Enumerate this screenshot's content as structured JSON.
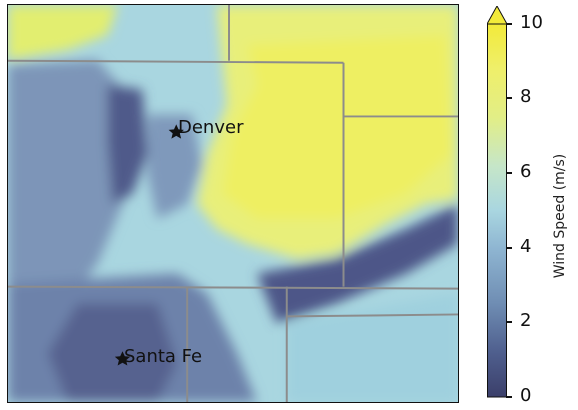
{
  "cities": [
    {
      "name": "Denver"
    },
    {
      "name": "Santa Fe"
    }
  ],
  "colorbar": {
    "title": "Wind Speed (m/s)",
    "min": 0,
    "max": 10,
    "extend": "max",
    "ticks": [
      "0",
      "2",
      "4",
      "6",
      "8",
      "10"
    ],
    "colors": [
      "#3b3f6a",
      "#4f5f8e",
      "#6f8db3",
      "#8fb6d2",
      "#a9d6e0",
      "#c6e6c8",
      "#e2ee86",
      "#efef6a",
      "#f2ea3a"
    ]
  }
}
